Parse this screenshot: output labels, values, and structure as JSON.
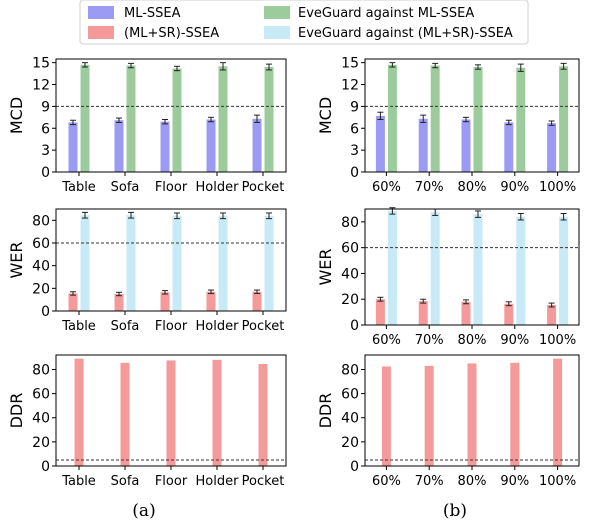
{
  "legend": [
    {
      "name": "ML-SSEA",
      "color": "#9b9bf4"
    },
    {
      "name": "(ML+SR)-SSEA",
      "color": "#f59a9a"
    },
    {
      "name": "EveGuard against ML-SSEA",
      "color": "#9ccc9c"
    },
    {
      "name": "EveGuard against (ML+SR)-SSEA",
      "color": "#c8e9f6"
    }
  ],
  "captions": {
    "left": "(a)",
    "right": "(b)"
  },
  "chart_data": [
    {
      "type": "bar",
      "panel": "a",
      "ylabel": "MCD",
      "ylim": [
        0,
        15.5
      ],
      "yticks": [
        0,
        3,
        6,
        9,
        12,
        15
      ],
      "threshold": 9,
      "categories": [
        "Table",
        "Sofa",
        "Floor",
        "Holder",
        "Pocket"
      ],
      "series": [
        {
          "name": "ML-SSEA",
          "values": [
            6.8,
            7.1,
            6.9,
            7.2,
            7.3
          ],
          "errors": [
            0.3,
            0.3,
            0.3,
            0.3,
            0.5
          ]
        },
        {
          "name": "EveGuard against ML-SSEA",
          "values": [
            14.7,
            14.6,
            14.2,
            14.5,
            14.4
          ],
          "errors": [
            0.3,
            0.3,
            0.3,
            0.5,
            0.4
          ]
        }
      ]
    },
    {
      "type": "bar",
      "panel": "b",
      "ylabel": "MCD",
      "ylim": [
        0,
        15.5
      ],
      "yticks": [
        0,
        3,
        6,
        9,
        12,
        15
      ],
      "threshold": 9,
      "categories": [
        "60%",
        "70%",
        "80%",
        "90%",
        "100%"
      ],
      "series": [
        {
          "name": "ML-SSEA",
          "values": [
            7.7,
            7.3,
            7.2,
            6.8,
            6.7
          ],
          "errors": [
            0.5,
            0.5,
            0.3,
            0.3,
            0.3
          ]
        },
        {
          "name": "EveGuard against ML-SSEA",
          "values": [
            14.7,
            14.6,
            14.4,
            14.3,
            14.5
          ],
          "errors": [
            0.3,
            0.3,
            0.3,
            0.5,
            0.4
          ]
        }
      ]
    },
    {
      "type": "bar",
      "panel": "a",
      "ylabel": "WER",
      "ylim": [
        0,
        90
      ],
      "yticks": [
        0,
        20,
        40,
        60,
        80
      ],
      "threshold": 60,
      "categories": [
        "Table",
        "Sofa",
        "Floor",
        "Holder",
        "Pocket"
      ],
      "series": [
        {
          "name": "(ML+SR)-SSEA",
          "values": [
            15.5,
            15,
            16.5,
            17,
            17
          ],
          "errors": [
            1.5,
            1.5,
            1.5,
            1.5,
            1.5
          ]
        },
        {
          "name": "EveGuard against (ML+SR)-SSEA",
          "values": [
            84.5,
            84.5,
            84,
            84,
            84
          ],
          "errors": [
            2.5,
            2.5,
            2.5,
            2.5,
            2.5
          ]
        }
      ]
    },
    {
      "type": "bar",
      "panel": "b",
      "ylabel": "WER",
      "ylim": [
        0,
        90
      ],
      "yticks": [
        0,
        20,
        40,
        60,
        80
      ],
      "threshold": 60,
      "categories": [
        "60%",
        "70%",
        "80%",
        "90%",
        "100%"
      ],
      "series": [
        {
          "name": "(ML+SR)-SSEA",
          "values": [
            20,
            18.5,
            18,
            16.5,
            15.5
          ],
          "errors": [
            1.5,
            1.5,
            1.5,
            1.5,
            1.5
          ]
        },
        {
          "name": "EveGuard against (ML+SR)-SSEA",
          "values": [
            88.5,
            87.5,
            86,
            84,
            84
          ],
          "errors": [
            2.5,
            2.5,
            2.5,
            2.5,
            2.5
          ]
        }
      ]
    },
    {
      "type": "bar",
      "panel": "a",
      "ylabel": "DDR",
      "ylim": [
        0,
        92
      ],
      "yticks": [
        0,
        20,
        40,
        60,
        80
      ],
      "threshold": 5,
      "categories": [
        "Table",
        "Sofa",
        "Floor",
        "Holder",
        "Pocket"
      ],
      "series": [
        {
          "name": "(ML+SR)-SSEA",
          "values": [
            89,
            85.5,
            87.5,
            88,
            84.5
          ]
        }
      ]
    },
    {
      "type": "bar",
      "panel": "b",
      "ylabel": "DDR",
      "ylim": [
        0,
        92
      ],
      "yticks": [
        0,
        20,
        40,
        60,
        80
      ],
      "threshold": 5,
      "categories": [
        "60%",
        "70%",
        "80%",
        "90%",
        "100%"
      ],
      "series": [
        {
          "name": "(ML+SR)-SSEA",
          "values": [
            82.5,
            83,
            85,
            85.5,
            89
          ]
        }
      ]
    }
  ]
}
